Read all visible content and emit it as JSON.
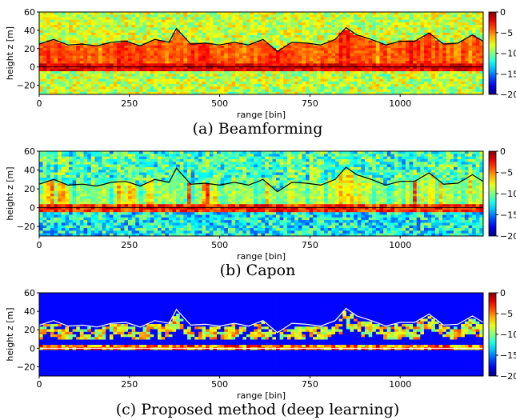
{
  "chart_data": [
    {
      "type": "heatmap",
      "caption": "(a) Beamforming",
      "xlabel": "range [bin]",
      "ylabel": "height z [m]",
      "xlim": [
        0,
        1230
      ],
      "ylim": [
        -30,
        60
      ],
      "xticks": [
        "0",
        "250",
        "500",
        "750",
        "1000"
      ],
      "yticks": [
        "60",
        "40",
        "20",
        "0",
        "−20"
      ],
      "colorbar": {
        "range": [
          -20,
          0
        ],
        "ticks": [
          "0",
          "−5",
          "−10",
          "−15",
          "−20"
        ],
        "colormap": "jet"
      },
      "overlay": {
        "line_color": "#000000",
        "top_line": {
          "x": [
            0,
            40,
            80,
            120,
            160,
            200,
            240,
            280,
            320,
            360,
            380,
            420,
            460,
            500,
            540,
            580,
            620,
            660,
            700,
            740,
            780,
            820,
            850,
            880,
            920,
            960,
            1000,
            1040,
            1080,
            1120,
            1160,
            1200,
            1230
          ],
          "y": [
            25,
            30,
            24,
            25,
            23,
            27,
            28,
            23,
            30,
            27,
            42,
            25,
            26,
            24,
            27,
            24,
            30,
            17,
            27,
            26,
            24,
            30,
            43,
            35,
            30,
            24,
            28,
            28,
            37,
            25,
            26,
            35,
            28
          ]
        },
        "ground_line_y": 0
      }
    },
    {
      "type": "heatmap",
      "caption": "(b) Capon",
      "xlabel": "range [bin]",
      "ylabel": "height z [m]",
      "xlim": [
        0,
        1230
      ],
      "ylim": [
        -30,
        60
      ],
      "xticks": [
        "0",
        "250",
        "500",
        "750",
        "1000"
      ],
      "yticks": [
        "60",
        "40",
        "20",
        "0",
        "−20"
      ],
      "colorbar": {
        "range": [
          -20,
          0
        ],
        "ticks": [
          "0",
          "−5",
          "−10",
          "−15",
          "−20"
        ],
        "colormap": "jet"
      },
      "overlay": {
        "line_color": "#000000",
        "top_line": {
          "x": [
            0,
            40,
            80,
            120,
            160,
            200,
            240,
            280,
            320,
            360,
            380,
            420,
            460,
            500,
            540,
            580,
            620,
            660,
            700,
            740,
            780,
            820,
            850,
            880,
            920,
            960,
            1000,
            1040,
            1080,
            1120,
            1160,
            1200,
            1230
          ],
          "y": [
            25,
            30,
            24,
            25,
            23,
            27,
            28,
            23,
            30,
            27,
            42,
            25,
            26,
            24,
            27,
            24,
            30,
            17,
            27,
            26,
            24,
            30,
            43,
            35,
            30,
            24,
            28,
            28,
            37,
            25,
            26,
            35,
            28
          ]
        },
        "ground_line_y": 0
      }
    },
    {
      "type": "heatmap",
      "caption": "(c) Proposed method (deep learning)",
      "xlabel": "range [bin]",
      "ylabel": "height z [m]",
      "xlim": [
        0,
        1230
      ],
      "ylim": [
        -30,
        60
      ],
      "xticks": [
        "0",
        "250",
        "500",
        "750",
        "1000"
      ],
      "yticks": [
        "60",
        "40",
        "20",
        "0",
        "−20"
      ],
      "colorbar": {
        "range": [
          -20,
          0
        ],
        "ticks": [
          "0",
          "−5",
          "−10",
          "−15",
          "−20"
        ],
        "colormap": "jet"
      },
      "overlay": {
        "line_color": "#ffffff",
        "top_line": {
          "x": [
            0,
            40,
            80,
            120,
            160,
            200,
            240,
            280,
            320,
            360,
            380,
            420,
            460,
            500,
            540,
            580,
            620,
            660,
            700,
            740,
            780,
            820,
            850,
            880,
            920,
            960,
            1000,
            1040,
            1080,
            1120,
            1160,
            1200,
            1230
          ],
          "y": [
            25,
            30,
            24,
            25,
            23,
            27,
            28,
            23,
            30,
            27,
            42,
            25,
            26,
            24,
            27,
            24,
            30,
            17,
            27,
            26,
            24,
            30,
            43,
            35,
            30,
            24,
            28,
            28,
            37,
            25,
            26,
            35,
            28
          ]
        },
        "ground_line_y": 0
      }
    }
  ]
}
